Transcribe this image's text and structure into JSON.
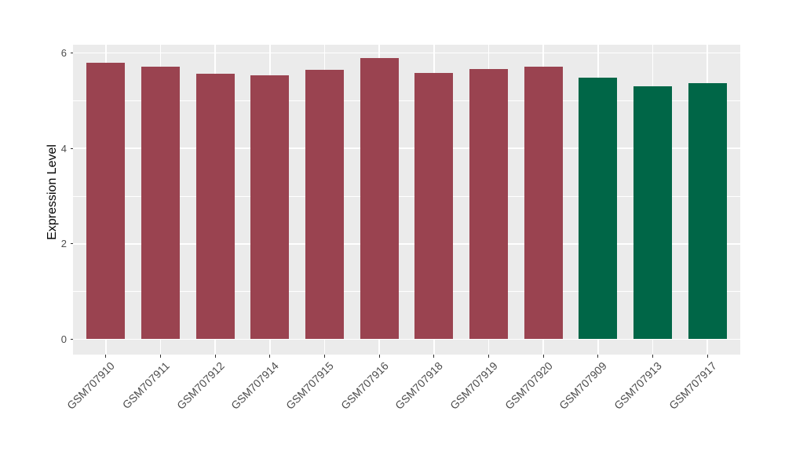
{
  "chart_data": {
    "type": "bar",
    "title": "",
    "xlabel": "",
    "ylabel": "Expression Level",
    "categories": [
      "GSM707910",
      "GSM707911",
      "GSM707912",
      "GSM707914",
      "GSM707915",
      "GSM707916",
      "GSM707918",
      "GSM707919",
      "GSM707920",
      "GSM707909",
      "GSM707913",
      "GSM707917"
    ],
    "values": [
      5.79,
      5.71,
      5.56,
      5.53,
      5.64,
      5.89,
      5.58,
      5.66,
      5.71,
      5.49,
      5.3,
      5.36
    ],
    "bar_colors": [
      "#9A4350",
      "#9A4350",
      "#9A4350",
      "#9A4350",
      "#9A4350",
      "#9A4350",
      "#9A4350",
      "#9A4350",
      "#9A4350",
      "#006647",
      "#006647",
      "#006647"
    ],
    "group_colors": {
      "group_1": "#9A4350",
      "group_2": "#006647"
    },
    "yticks_major": [
      0,
      2,
      4,
      6
    ],
    "yticks_minor": [
      1,
      3,
      5
    ],
    "ylim": [
      0,
      6.17
    ],
    "grid": "on",
    "legend_position": "none",
    "style": {
      "panel_background": "#EBEBEB",
      "gridline_color": "#FFFFFF",
      "tick_color": "#333333",
      "axis_text_color": "#4D4D4D",
      "axis_title_color": "#000000",
      "figure_background": "#FFFFFF"
    }
  }
}
